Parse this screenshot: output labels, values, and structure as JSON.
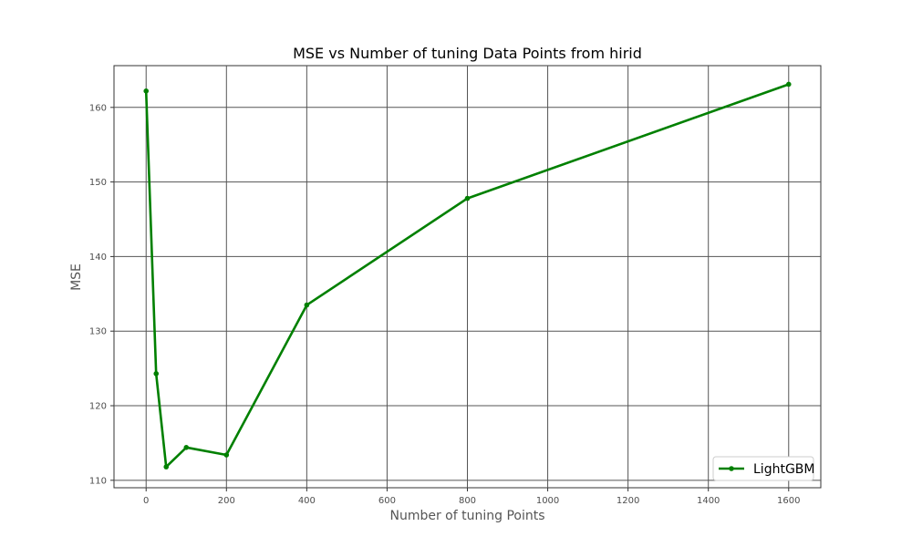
{
  "chart_data": {
    "type": "line",
    "title": "MSE vs Number of tuning Data Points from hirid",
    "xlabel": "Number of tuning Points",
    "ylabel": "MSE",
    "xlim": [
      -80,
      1680
    ],
    "ylim": [
      109,
      165.6
    ],
    "xticks": [
      0,
      200,
      400,
      600,
      800,
      1000,
      1200,
      1400,
      1600
    ],
    "yticks": [
      110,
      120,
      130,
      140,
      150,
      160
    ],
    "grid": true,
    "legend_position": "lower right",
    "series": [
      {
        "name": "LightGBM",
        "color": "#008000",
        "marker": "circle",
        "x": [
          0,
          25,
          50,
          100,
          200,
          400,
          800,
          1600
        ],
        "y": [
          162.2,
          124.3,
          111.8,
          114.4,
          113.4,
          133.5,
          147.8,
          163.1
        ]
      }
    ]
  }
}
